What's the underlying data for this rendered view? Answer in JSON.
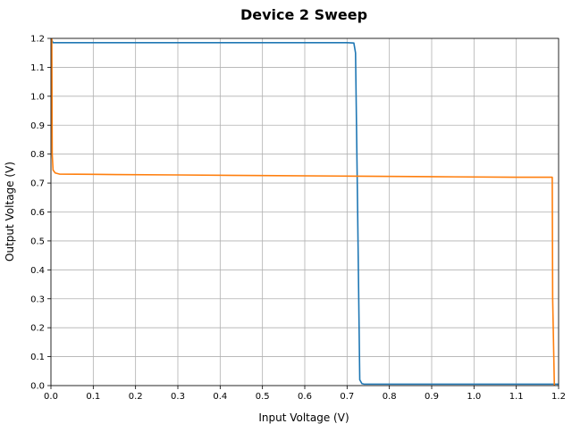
{
  "chart_data": {
    "type": "line",
    "title": "Device 2 Sweep",
    "xlabel": "Input Voltage (V)",
    "ylabel": "Output Voltage (V)",
    "xlim": [
      0.0,
      1.2
    ],
    "ylim": [
      0.0,
      1.2
    ],
    "grid": true,
    "x_ticks": [
      "0.0",
      "0.1",
      "0.2",
      "0.3",
      "0.4",
      "0.5",
      "0.6",
      "0.7",
      "0.8",
      "0.9",
      "1.0",
      "1.1",
      "1.2"
    ],
    "y_ticks": [
      "0.0",
      "0.1",
      "0.2",
      "0.3",
      "0.4",
      "0.5",
      "0.6",
      "0.7",
      "0.8",
      "0.9",
      "1.0",
      "1.1",
      "1.2"
    ],
    "colors": {
      "grid": "#b0b0b0",
      "axes": "#000000"
    },
    "series": [
      {
        "color": "#1f77b4",
        "x": [
          0.0,
          0.005,
          0.1,
          0.3,
          0.5,
          0.7,
          0.716,
          0.72,
          0.725,
          0.73,
          0.735,
          0.74,
          0.8,
          1.0,
          1.2
        ],
        "y": [
          1.2,
          1.185,
          1.185,
          1.185,
          1.185,
          1.185,
          1.184,
          1.15,
          0.6,
          0.02,
          0.007,
          0.005,
          0.005,
          0.005,
          0.005
        ]
      },
      {
        "color": "#ff7f0e",
        "x": [
          0.002,
          0.003,
          0.005,
          0.01,
          0.02,
          0.1,
          0.3,
          0.5,
          0.7,
          0.9,
          1.1,
          1.185,
          1.186,
          1.19
        ],
        "y": [
          1.2,
          0.8,
          0.745,
          0.735,
          0.731,
          0.73,
          0.728,
          0.726,
          0.724,
          0.722,
          0.72,
          0.72,
          0.3,
          0.0
        ]
      }
    ]
  }
}
